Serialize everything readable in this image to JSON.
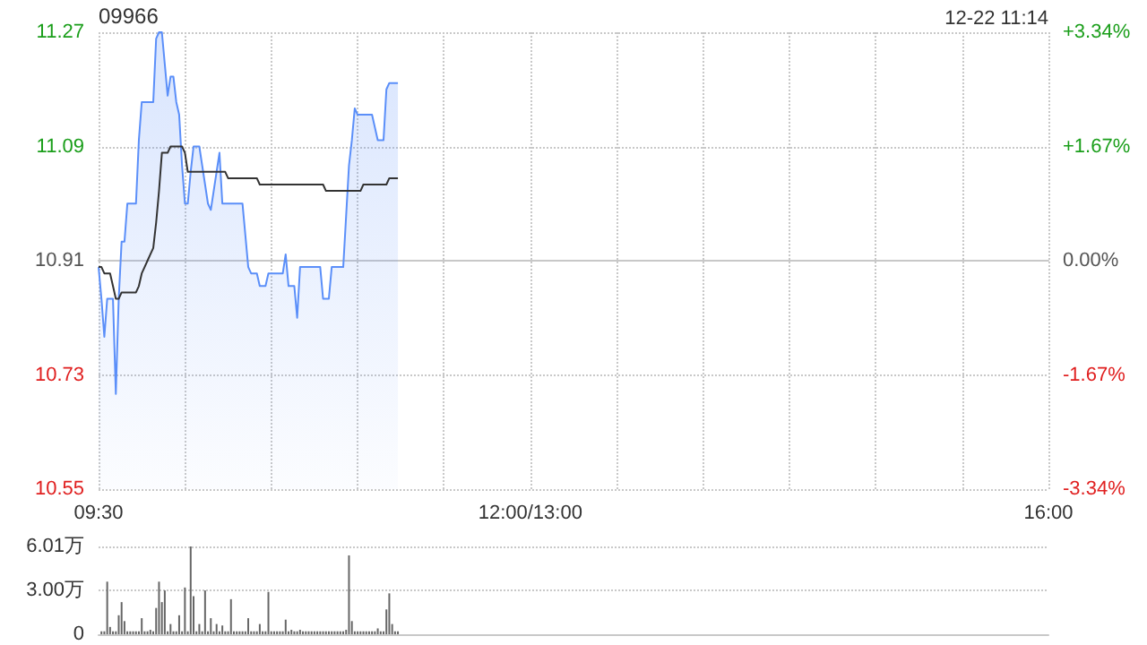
{
  "chart_data": [
    {
      "type": "line",
      "title": "09966",
      "annotations": [
        "12-22 11:14"
      ],
      "categories": [
        "09:30",
        null,
        null,
        null,
        null,
        null,
        null,
        null,
        null,
        null,
        null,
        null,
        null,
        null,
        null,
        null,
        null,
        null,
        null,
        null,
        null,
        null,
        null,
        null,
        null,
        null,
        null,
        null,
        null,
        null,
        null,
        null,
        null,
        null,
        null,
        null,
        null,
        null,
        null,
        null,
        null,
        null,
        null,
        null,
        null,
        null,
        null,
        null,
        null,
        null,
        null,
        null,
        null,
        null,
        null,
        null,
        null,
        null,
        null,
        null,
        null,
        null,
        null,
        null,
        null,
        null,
        null,
        null,
        null,
        null,
        null,
        null,
        null,
        null,
        null,
        null,
        null,
        null,
        null,
        null,
        null,
        null,
        null,
        null,
        null,
        null,
        null,
        null,
        null,
        null,
        null,
        null,
        null,
        null,
        null,
        null,
        null,
        null,
        null,
        null,
        null,
        null,
        null,
        null,
        null,
        null,
        null,
        null,
        null,
        null,
        null,
        null,
        null,
        null,
        null,
        null,
        null,
        null,
        null,
        null,
        null,
        null,
        null,
        null,
        null,
        null,
        null,
        null,
        null,
        null,
        null,
        null,
        null,
        null,
        null,
        null,
        null,
        null,
        null,
        null,
        null,
        null,
        null,
        null,
        null,
        null,
        null,
        null,
        null,
        null,
        "12:00/13:00",
        null,
        null,
        null,
        null,
        null,
        null,
        null,
        null,
        null,
        null,
        null,
        null,
        null,
        null,
        null,
        null,
        null,
        null,
        null,
        null,
        null,
        null,
        null,
        null,
        null,
        null,
        null,
        null,
        null,
        null,
        null,
        null,
        null,
        null,
        null,
        null,
        null,
        null,
        null,
        null,
        null,
        null,
        null,
        null,
        null,
        null,
        null,
        null,
        null,
        null,
        null,
        null,
        null,
        null,
        null,
        null,
        null,
        null,
        null,
        null,
        null,
        null,
        null,
        null,
        null,
        null,
        null,
        null,
        null,
        null,
        null,
        null,
        null,
        null,
        null,
        null,
        null,
        null,
        null,
        null,
        null,
        null,
        null,
        null,
        null,
        null,
        null,
        null,
        null,
        null,
        null,
        null,
        null,
        null,
        null,
        null,
        null,
        null,
        null,
        null,
        null,
        null,
        null,
        null,
        null,
        null,
        null,
        null,
        null,
        null,
        null,
        null,
        null,
        null,
        null,
        null,
        null,
        null,
        null,
        null,
        null,
        null,
        null,
        null,
        null,
        null,
        null,
        null,
        null,
        null,
        null,
        null,
        null,
        null,
        null,
        null,
        null,
        null,
        null,
        null,
        null,
        null,
        null,
        null,
        null,
        null,
        null,
        null,
        null,
        null,
        null,
        null,
        null,
        null,
        null,
        null,
        null,
        null,
        null,
        null,
        null,
        null,
        null,
        null,
        null,
        null,
        null,
        null,
        null,
        null,
        null,
        null,
        null,
        null,
        null,
        null,
        null,
        null,
        null,
        "16:00"
      ],
      "ylim": [
        10.55,
        11.27
      ],
      "yticks": [
        10.55,
        10.73,
        10.91,
        11.09,
        11.27
      ],
      "y2lim": [
        -3.34,
        3.34
      ],
      "y2ticks": [
        {
          "value": -3.34,
          "label": "-3.34%"
        },
        {
          "value": -1.67,
          "label": "-1.67%"
        },
        {
          "value": 0,
          "label": "0.00%"
        },
        {
          "value": 1.67,
          "label": "+1.67%"
        },
        {
          "value": 3.34,
          "label": "+3.34%"
        }
      ],
      "grid": true,
      "series": [
        {
          "type": "area",
          "color": "#5b8ff9",
          "values": [
            10.9,
            10.85,
            10.79,
            10.85,
            10.85,
            10.85,
            10.7,
            10.85,
            10.94,
            10.94,
            11.0,
            11.0,
            11.0,
            11.0,
            11.1,
            11.16,
            11.16,
            11.16,
            11.16,
            11.16,
            11.26,
            11.27,
            11.27,
            11.22,
            11.17,
            11.2,
            11.2,
            11.16,
            11.14,
            11.06,
            11.0,
            11.0,
            11.05,
            11.09,
            11.09,
            11.09,
            11.06,
            11.03,
            11.0,
            10.99,
            11.02,
            11.05,
            11.08,
            11.0,
            11.0,
            11.0,
            11.0,
            11.0,
            11.0,
            11.0,
            11.0,
            10.95,
            10.9,
            10.89,
            10.89,
            10.89,
            10.87,
            10.87,
            10.87,
            10.89,
            10.89,
            10.89,
            10.89,
            10.89,
            10.89,
            10.92,
            10.87,
            10.87,
            10.87,
            10.82,
            10.9,
            10.9,
            10.9,
            10.9,
            10.9,
            10.9,
            10.9,
            10.9,
            10.85,
            10.85,
            10.85,
            10.9,
            10.9,
            10.9,
            10.9,
            10.9,
            10.98,
            11.06,
            11.1,
            11.15,
            11.14,
            11.14,
            11.14,
            11.14,
            11.14,
            11.14,
            11.12,
            11.1,
            11.1,
            11.1,
            11.18,
            11.19,
            11.19,
            11.19,
            11.19,
            null,
            null,
            null,
            null,
            null,
            null,
            null,
            null,
            null,
            null,
            null,
            null,
            null,
            null,
            null,
            null,
            null,
            null,
            null,
            null,
            null,
            null,
            null,
            null,
            null,
            null,
            null,
            null,
            null,
            null,
            null,
            null,
            null,
            null,
            null,
            null,
            null,
            null,
            null,
            null,
            null,
            null,
            null,
            null,
            null,
            null,
            null,
            null,
            null,
            null,
            null,
            null,
            null,
            null,
            null,
            null,
            null,
            null,
            null,
            null,
            null,
            null,
            null,
            null,
            null,
            null,
            null,
            null,
            null,
            null,
            null,
            null,
            null,
            null,
            null,
            null,
            null,
            null,
            null,
            null,
            null,
            null,
            null,
            null,
            null,
            null,
            null,
            null,
            null,
            null,
            null,
            null,
            null,
            null,
            null,
            null,
            null,
            null,
            null,
            null,
            null,
            null,
            null,
            null,
            null,
            null,
            null,
            null,
            null,
            null,
            null,
            null,
            null,
            null,
            null,
            null,
            null,
            null,
            null,
            null,
            null,
            null,
            null,
            null,
            null,
            null,
            null,
            null,
            null,
            null,
            null,
            null,
            null,
            null,
            null,
            null,
            null,
            null,
            null,
            null,
            null,
            null,
            null,
            null,
            null,
            null,
            null,
            null,
            null,
            null,
            null,
            null,
            null,
            null,
            null,
            null,
            null,
            null,
            null,
            null,
            null,
            null,
            null,
            null,
            null,
            null,
            null,
            null,
            null,
            null,
            null,
            null,
            null,
            null,
            null,
            null,
            null,
            null,
            null,
            null,
            null,
            null,
            null,
            null,
            null,
            null,
            null,
            null,
            null,
            null,
            null,
            null,
            null,
            null,
            null,
            null,
            null,
            null,
            null,
            null,
            null,
            null,
            null,
            null,
            null,
            null,
            null,
            null,
            null,
            null,
            null,
            null,
            null,
            null,
            null,
            null,
            null,
            null,
            null,
            null,
            null,
            null,
            null,
            null,
            null,
            null
          ]
        },
        {
          "type": "line",
          "color": "#333333",
          "values": [
            10.9,
            10.9,
            10.89,
            10.89,
            10.89,
            10.87,
            10.85,
            10.85,
            10.86,
            10.86,
            10.86,
            10.86,
            10.86,
            10.86,
            10.87,
            10.89,
            10.9,
            10.91,
            10.92,
            10.93,
            10.97,
            11.02,
            11.08,
            11.08,
            11.08,
            11.09,
            11.09,
            11.09,
            11.09,
            11.09,
            11.08,
            11.05,
            11.05,
            11.05,
            11.05,
            11.05,
            11.05,
            11.05,
            11.05,
            11.05,
            11.05,
            11.05,
            11.05,
            11.05,
            11.05,
            11.04,
            11.04,
            11.04,
            11.04,
            11.04,
            11.04,
            11.04,
            11.04,
            11.04,
            11.04,
            11.04,
            11.03,
            11.03,
            11.03,
            11.03,
            11.03,
            11.03,
            11.03,
            11.03,
            11.03,
            11.03,
            11.03,
            11.03,
            11.03,
            11.03,
            11.03,
            11.03,
            11.03,
            11.03,
            11.03,
            11.03,
            11.03,
            11.03,
            11.03,
            11.02,
            11.02,
            11.02,
            11.02,
            11.02,
            11.02,
            11.02,
            11.02,
            11.02,
            11.02,
            11.02,
            11.02,
            11.02,
            11.03,
            11.03,
            11.03,
            11.03,
            11.03,
            11.03,
            11.03,
            11.03,
            11.03,
            11.04,
            11.04,
            11.04,
            11.04,
            null,
            null,
            null,
            null,
            null,
            null,
            null,
            null,
            null,
            null,
            null,
            null,
            null,
            null,
            null,
            null,
            null,
            null,
            null,
            null,
            null,
            null,
            null,
            null,
            null,
            null,
            null,
            null,
            null,
            null,
            null,
            null,
            null,
            null,
            null,
            null,
            null,
            null,
            null,
            null,
            null,
            null,
            null,
            null,
            null,
            null,
            null,
            null,
            null,
            null,
            null,
            null,
            null,
            null,
            null,
            null,
            null,
            null,
            null,
            null,
            null,
            null,
            null,
            null,
            null,
            null,
            null,
            null,
            null,
            null,
            null,
            null,
            null,
            null,
            null,
            null,
            null,
            null,
            null,
            null,
            null,
            null,
            null,
            null,
            null,
            null,
            null,
            null,
            null,
            null,
            null,
            null,
            null,
            null,
            null,
            null,
            null,
            null,
            null,
            null,
            null,
            null,
            null,
            null,
            null,
            null,
            null,
            null,
            null,
            null,
            null,
            null,
            null,
            null,
            null,
            null,
            null,
            null,
            null,
            null,
            null,
            null,
            null,
            null,
            null,
            null,
            null,
            null,
            null,
            null,
            null,
            null,
            null,
            null,
            null,
            null,
            null,
            null,
            null,
            null,
            null,
            null,
            null,
            null,
            null,
            null,
            null,
            null,
            null,
            null,
            null,
            null,
            null,
            null,
            null,
            null,
            null,
            null,
            null,
            null,
            null,
            null,
            null,
            null,
            null,
            null,
            null,
            null,
            null,
            null,
            null,
            null,
            null,
            null,
            null,
            null,
            null,
            null,
            null,
            null,
            null,
            null,
            null,
            null,
            null,
            null,
            null,
            null,
            null,
            null,
            null,
            null,
            null,
            null,
            null,
            null,
            null,
            null,
            null,
            null,
            null,
            null,
            null,
            null,
            null,
            null,
            null,
            null,
            null,
            null,
            null,
            null,
            null,
            null,
            null,
            null,
            null,
            null,
            null,
            null,
            null,
            null,
            null,
            null,
            null,
            null
          ]
        }
      ]
    },
    {
      "type": "bar",
      "categories": [
        null,
        null,
        null,
        null,
        null,
        null,
        null,
        null,
        null,
        null,
        null,
        null,
        null,
        null,
        null,
        null,
        null,
        null,
        null,
        null,
        null,
        null,
        null,
        null,
        null,
        null,
        null,
        null,
        null,
        null,
        null,
        null,
        null,
        null,
        null,
        null,
        null,
        null,
        null,
        null,
        null,
        null,
        null,
        null,
        null,
        null,
        null,
        null,
        null,
        null,
        null,
        null,
        null,
        null,
        null,
        null,
        null,
        null,
        null,
        null,
        null,
        null,
        null,
        null,
        null,
        null,
        null,
        null,
        null,
        null,
        null,
        null,
        null,
        null,
        null,
        null,
        null,
        null,
        null,
        null,
        null,
        null,
        null,
        null,
        null,
        null,
        null,
        null,
        null,
        null,
        null,
        null,
        null,
        null,
        null,
        null,
        null,
        null,
        null,
        null,
        null,
        null,
        null,
        null,
        null,
        null,
        null,
        null,
        null,
        null,
        null,
        null,
        null,
        null,
        null,
        null,
        null,
        null,
        null,
        null,
        null,
        null,
        null,
        null,
        null,
        null,
        null,
        null,
        null,
        null,
        null,
        null,
        null,
        null,
        null,
        null,
        null,
        null,
        null,
        null,
        null,
        null,
        null,
        null,
        null,
        null,
        null,
        null,
        null,
        null,
        null,
        null,
        null,
        null,
        null,
        null,
        null,
        null,
        null,
        null,
        null,
        null,
        null,
        null,
        null,
        null,
        null,
        null,
        null,
        null,
        null,
        null,
        null,
        null,
        null,
        null,
        null,
        null,
        null,
        null,
        null,
        null,
        null,
        null,
        null,
        null,
        null,
        null,
        null,
        null,
        null,
        null,
        null,
        null,
        null,
        null,
        null,
        null,
        null,
        null,
        null,
        null,
        null,
        null,
        null,
        null,
        null,
        null,
        null,
        null,
        null,
        null,
        null,
        null,
        null,
        null,
        null,
        null,
        null,
        null,
        null,
        null,
        null,
        null,
        null,
        null,
        null,
        null,
        null,
        null,
        null,
        null,
        null,
        null,
        null,
        null,
        null,
        null,
        null,
        null,
        null,
        null,
        null,
        null,
        null,
        null,
        null,
        null,
        null,
        null,
        null,
        null,
        null,
        null,
        null,
        null,
        null,
        null,
        null,
        null,
        null,
        null,
        null,
        null,
        null,
        null,
        null,
        null,
        null,
        null,
        null,
        null,
        null,
        null,
        null,
        null,
        null,
        null,
        null,
        null,
        null,
        null,
        null,
        null,
        null,
        null,
        null,
        null,
        null,
        null,
        null,
        null,
        null,
        null,
        null,
        null,
        null,
        null,
        null,
        null,
        null,
        null,
        null,
        null,
        null,
        null,
        null,
        null,
        null,
        null,
        null,
        null,
        null,
        null,
        null,
        null,
        null,
        null,
        null,
        null,
        null,
        null,
        null,
        null,
        null,
        null,
        null,
        null,
        null,
        null,
        null
      ],
      "ylim": [
        0,
        6.01
      ],
      "yticks": [
        0,
        {
          "value": 3.0,
          "label": "3.00万"
        },
        {
          "value": 6.01,
          "label": "6.01万"
        }
      ],
      "grid": "y",
      "tick_labels": "y",
      "series": [
        {
          "color": "#666666",
          "values": [
            null,
            0.2,
            0.2,
            3.6,
            0.5,
            0.2,
            0.2,
            1.3,
            2.2,
            0.9,
            0.2,
            0.2,
            0.2,
            0.2,
            0.2,
            1.1,
            0.2,
            0.2,
            0.3,
            0.2,
            1.8,
            3.6,
            2.2,
            3.0,
            0.2,
            0.7,
            0.2,
            0.2,
            1.3,
            0.2,
            3.2,
            0.2,
            6.01,
            2.6,
            0.2,
            0.7,
            0.2,
            3.0,
            0.2,
            1.1,
            0.2,
            0.7,
            0.2,
            0.6,
            0.2,
            0.2,
            2.4,
            0.2,
            0.2,
            0.2,
            0.2,
            0.2,
            1.1,
            0.2,
            0.2,
            0.2,
            0.7,
            0.2,
            0.2,
            2.9,
            0.2,
            0.2,
            0.2,
            0.2,
            0.2,
            1.0,
            0.2,
            0.3,
            0.2,
            0.2,
            0.3,
            0.2,
            0.2,
            0.2,
            0.2,
            0.2,
            0.2,
            0.2,
            0.2,
            0.2,
            0.2,
            0.2,
            0.2,
            0.2,
            0.2,
            0.2,
            0.3,
            5.4,
            0.9,
            0.2,
            0.2,
            0.2,
            0.2,
            0.2,
            0.2,
            0.2,
            0.2,
            0.4,
            0.2,
            0.2,
            1.7,
            2.8,
            0.7,
            0.2,
            0.2,
            null,
            null,
            null,
            null,
            null,
            null,
            null,
            null,
            null,
            null,
            null,
            null,
            null,
            null,
            null,
            null,
            null,
            null,
            null,
            null,
            null,
            null,
            null,
            null,
            null,
            null,
            null,
            null,
            null,
            null,
            null,
            null,
            null,
            null,
            null,
            null,
            null,
            null,
            null,
            null,
            null,
            null,
            null,
            null,
            null,
            null,
            null,
            null,
            null,
            null,
            null,
            null,
            null,
            null,
            null,
            null,
            null,
            null,
            null,
            null,
            null,
            null,
            null,
            null,
            null,
            null,
            null,
            null,
            null,
            null,
            null,
            null,
            null,
            null,
            null,
            null,
            null,
            null,
            null,
            null,
            null,
            null,
            null,
            null,
            null,
            null,
            null,
            null,
            null,
            null,
            null,
            null,
            null,
            null,
            null,
            null,
            null,
            null,
            null,
            null,
            null,
            null,
            null,
            null,
            null,
            null,
            null,
            null,
            null,
            null,
            null,
            null,
            null,
            null,
            null,
            null,
            null,
            null,
            null,
            null,
            null,
            null,
            null,
            null,
            null,
            null,
            null,
            null,
            null,
            null,
            null,
            null,
            null,
            null,
            null,
            null,
            null,
            null,
            null,
            null,
            null,
            null,
            null,
            null,
            null,
            null,
            null,
            null,
            null,
            null,
            null,
            null,
            null,
            null,
            null,
            null,
            null,
            null,
            null,
            null,
            null,
            null,
            null,
            null,
            null,
            null,
            null,
            null,
            null,
            null,
            null,
            null,
            null,
            null,
            null,
            null,
            null,
            null,
            null,
            null,
            null,
            null,
            null,
            null,
            null,
            null,
            null,
            null,
            null,
            null,
            null,
            null,
            null,
            null,
            null,
            null,
            null,
            null,
            null,
            null,
            null,
            null,
            null,
            null,
            null,
            null,
            null,
            null,
            null,
            null,
            null,
            null,
            null,
            null,
            null,
            null,
            null,
            null,
            null,
            null,
            null,
            null,
            null,
            null,
            null,
            null
          ]
        }
      ]
    }
  ]
}
